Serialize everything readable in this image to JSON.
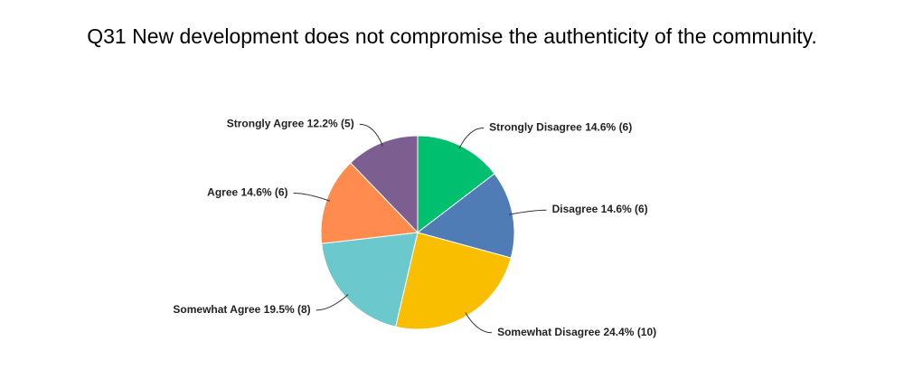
{
  "chart_data": {
    "type": "pie",
    "title": "Q31 New development does not compromise the authenticity of the community.",
    "categories": [
      "Strongly Disagree",
      "Disagree",
      "Somewhat Disagree",
      "Somewhat Agree",
      "Agree",
      "Strongly Agree"
    ],
    "values": [
      14.6,
      14.6,
      24.4,
      19.5,
      14.6,
      12.2
    ],
    "value_labels": [
      "14.6% (6)",
      "14.6% (6)",
      "24.4% (10)",
      "19.5% (8)",
      "14.6% (6)",
      "12.2% (5)"
    ],
    "colors": [
      "#00bf6f",
      "#507cb6",
      "#f9be00",
      "#6bc8cd",
      "#ff8b4f",
      "#7d5e90"
    ]
  }
}
